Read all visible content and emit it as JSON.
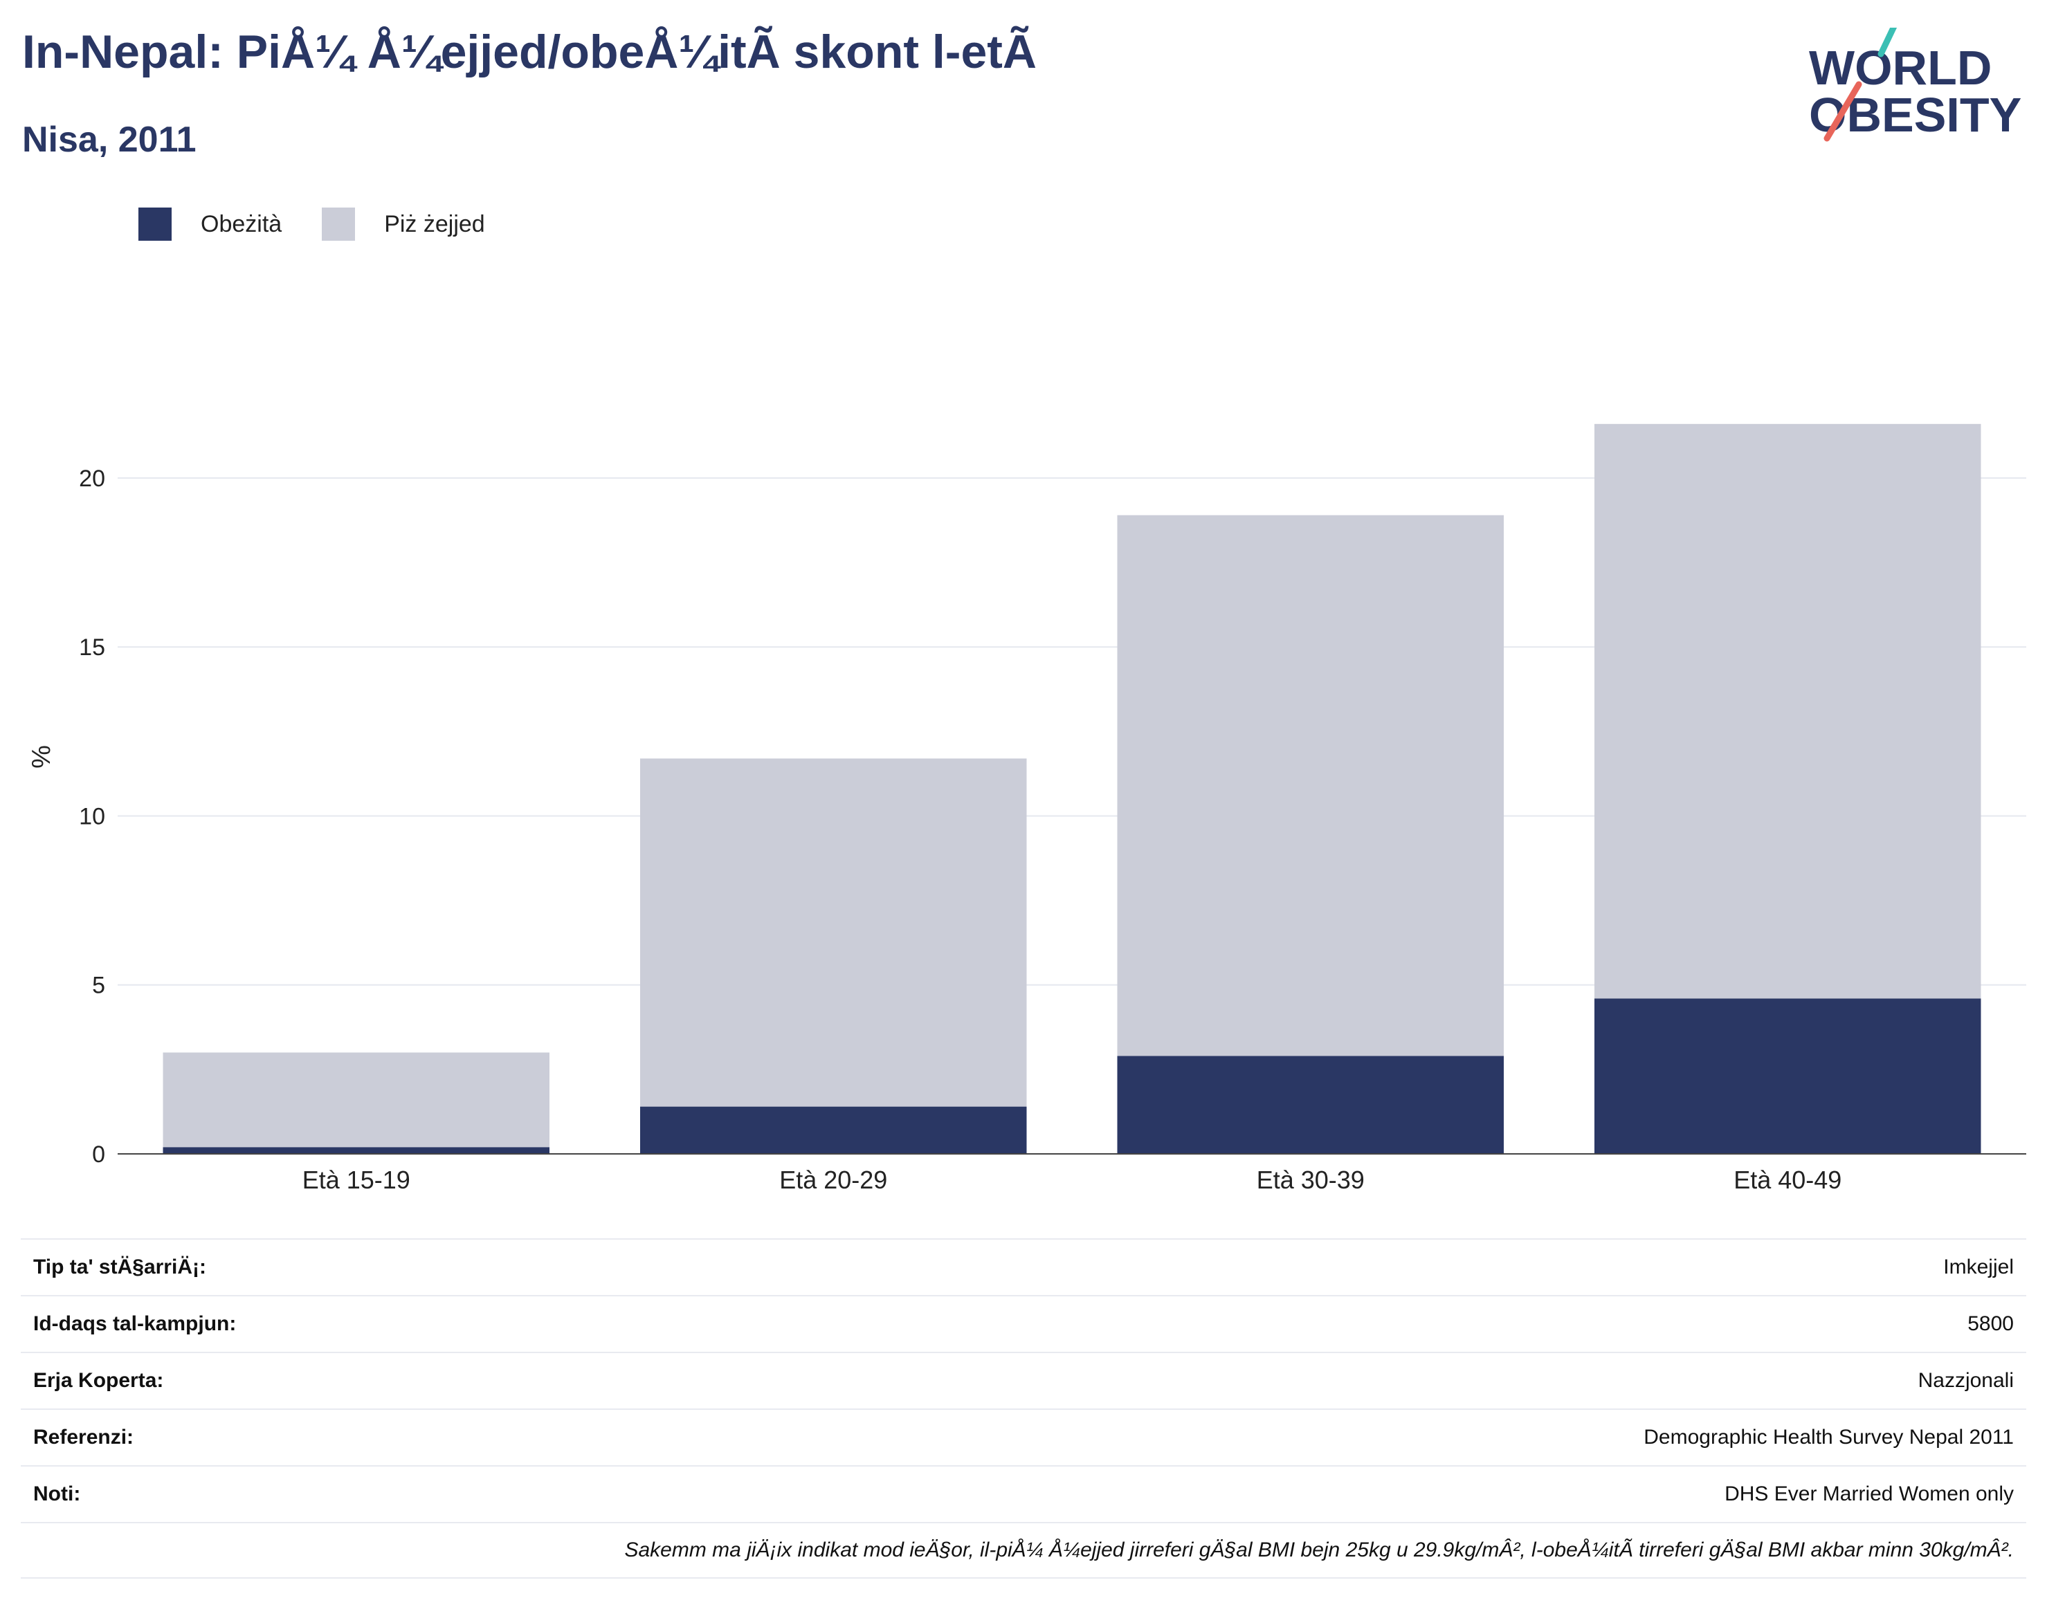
{
  "header": {
    "title": "In-Nepal: PiÅ¼ Å¼ejjed/obeÅ¼itÃ  skont l-etÃ",
    "subtitle": "Nisa, 2011"
  },
  "logo": {
    "line1": "WORLD",
    "line2": "OBESITY"
  },
  "legend": {
    "items": [
      {
        "label": "Obeżità",
        "color": "#2a3764"
      },
      {
        "label": "Piż żejjed",
        "color": "#cbcdd8"
      }
    ]
  },
  "chart_data": {
    "type": "bar",
    "stacked": true,
    "categories": [
      "Età 15-19",
      "Età 20-29",
      "Età 30-39",
      "Età 40-49"
    ],
    "series": [
      {
        "name": "Obeżità",
        "color": "#2a3764",
        "values": [
          0.2,
          1.4,
          2.9,
          4.6
        ]
      },
      {
        "name": "Piż żejjed",
        "color": "#cbcdd8",
        "values": [
          2.8,
          10.3,
          16.0,
          17.0
        ]
      }
    ],
    "ylabel": "%",
    "ylim": [
      0,
      23.5
    ],
    "yticks": [
      0,
      5,
      10,
      15,
      20
    ],
    "grid": true,
    "legend_position": "top-left"
  },
  "meta": {
    "rows": [
      {
        "label": "Tip ta' stÄ§arriÄ¡:",
        "value": "Imkejjel"
      },
      {
        "label": "Id-daqs tal-kampjun:",
        "value": "5800"
      },
      {
        "label": "Erja Koperta:",
        "value": "Nazzjonali"
      },
      {
        "label": "Referenzi:",
        "value": "Demographic Health Survey Nepal 2011"
      },
      {
        "label": "Noti:",
        "value": "DHS Ever Married Women only"
      }
    ],
    "note": "Sakemm ma jiÄ¡ix indikat mod ieÄ§or, il-piÅ¼ Å¼ejjed jirreferi gÄ§al BMI bejn 25kg u 29.9kg/mÂ², l-obeÅ¼itÃ  tirreferi gÄ§al BMI akbar minn 30kg/mÂ²."
  }
}
